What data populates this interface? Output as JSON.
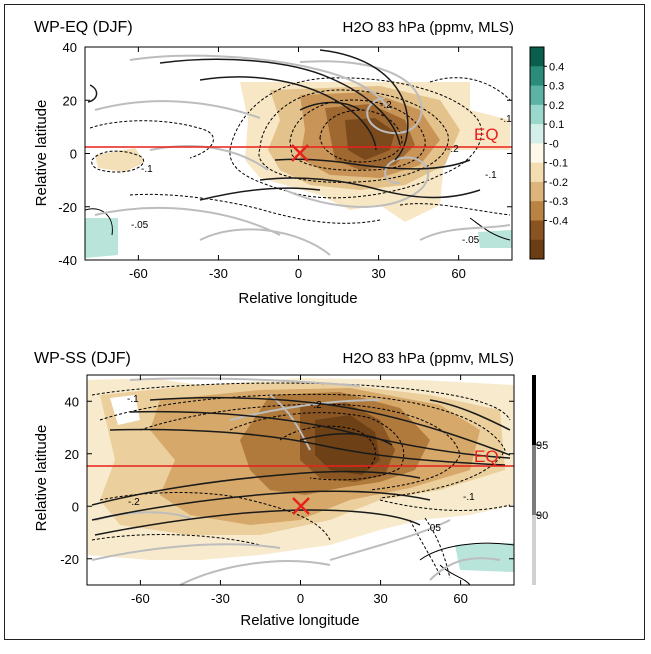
{
  "chart_data": [
    {
      "type": "contour",
      "title_left": "WP-EQ (DJF)",
      "title_right": "H2O 83 hPa (ppmv, MLS)",
      "xlabel": "Relative longitude",
      "ylabel": "Relative latitude",
      "xlim": [
        -80,
        80
      ],
      "ylim": [
        -40,
        40
      ],
      "xticks": [
        "-60",
        "-30",
        "0",
        "30",
        "60"
      ],
      "yticks": [
        "40",
        "20",
        "0",
        "-20",
        "-40"
      ],
      "equator_label": "EQ",
      "equator_lat": 3,
      "center_marker": {
        "x": 0,
        "y": 0
      },
      "contour_labels": [
        "-.1",
        "-.2",
        "-.2",
        "-.1",
        "-.05",
        "-.05",
        "-.1"
      ],
      "colorbar": {
        "ticks": [
          "0.4",
          "0.3",
          "0.2",
          "0.1",
          "-0",
          "-0.1",
          "-0.2",
          "-0.3",
          "-0.4"
        ],
        "colors": [
          "#0b5e4c",
          "#2c8c7a",
          "#5cb3a4",
          "#9ad8cc",
          "#d4efe9",
          "#fdf8ea",
          "#f4ddb1",
          "#dcb57a",
          "#b98443",
          "#8a5422",
          "#6b3d13"
        ]
      }
    },
    {
      "type": "contour",
      "title_left": "WP-SS (DJF)",
      "title_right": "H2O 83 hPa (ppmv, MLS)",
      "xlabel": "Relative longitude",
      "ylabel": "Relative latitude",
      "xlim": [
        -80,
        80
      ],
      "ylim": [
        -30,
        50
      ],
      "xticks": [
        "-60",
        "-30",
        "0",
        "30",
        "60"
      ],
      "yticks": [
        "40",
        "20",
        "0",
        "-20"
      ],
      "equator_label": "EQ",
      "equator_lat": 15,
      "center_marker": {
        "x": 0,
        "y": 0
      },
      "contour_labels": [
        ".05",
        "-.1",
        "-.2",
        "-.2",
        "-.1"
      ],
      "significance_bar": {
        "ticks": [
          "95",
          "90"
        ]
      }
    }
  ]
}
